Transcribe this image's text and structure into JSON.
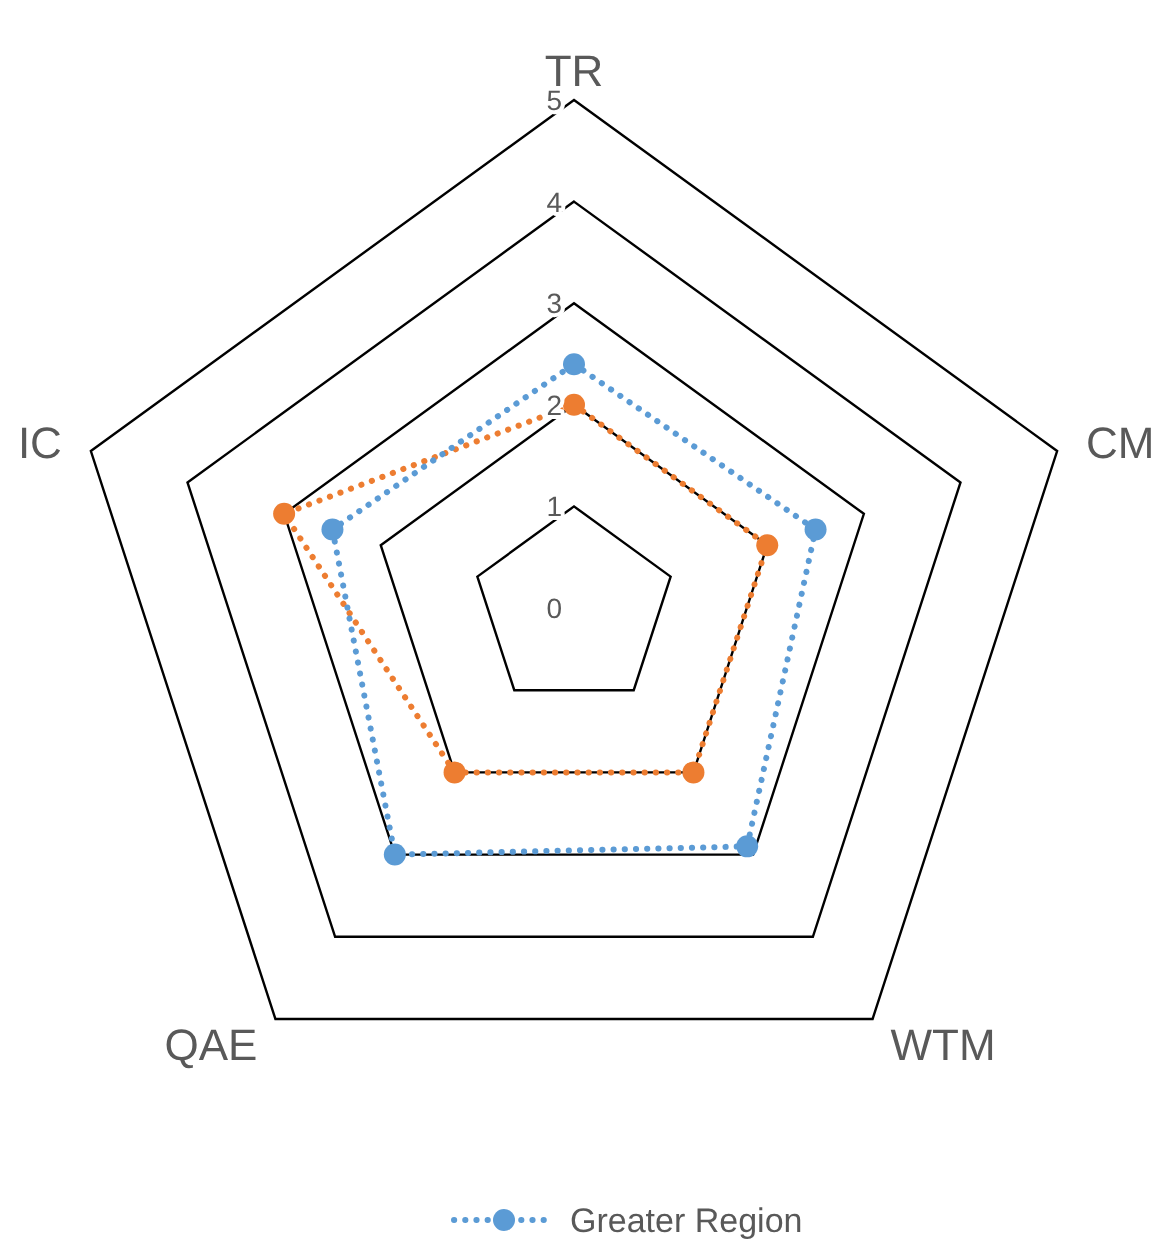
{
  "chart_data": {
    "type": "radar",
    "categories": [
      "TR",
      "CM",
      "WTM",
      "QAE",
      "IC"
    ],
    "series": [
      {
        "color": "#ed7d31",
        "values": [
          2.0,
          2.0,
          2.0,
          2.0,
          3.0
        ]
      },
      {
        "name": "Greater Region",
        "color": "#5b9bd5",
        "values": [
          2.4,
          2.5,
          2.9,
          3.0,
          2.5
        ]
      }
    ],
    "ylim": [
      0,
      5
    ],
    "yticks": [
      0,
      1,
      2,
      3,
      4,
      5
    ],
    "grid": true,
    "legend": "bottom",
    "marker": "circle",
    "line_style": "dotted"
  }
}
